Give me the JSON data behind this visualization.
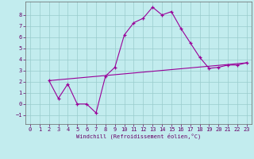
{
  "xlabel": "Windchill (Refroidissement éolien,°C)",
  "bg_color": "#c2ecee",
  "line_color": "#990099",
  "grid_color": "#99cccc",
  "spine_color": "#666666",
  "tick_color": "#660066",
  "xlim": [
    -0.5,
    23.5
  ],
  "ylim": [
    -1.8,
    9.2
  ],
  "xticks": [
    0,
    1,
    2,
    3,
    4,
    5,
    6,
    7,
    8,
    9,
    10,
    11,
    12,
    13,
    14,
    15,
    16,
    17,
    18,
    19,
    20,
    21,
    22,
    23
  ],
  "yticks": [
    -1,
    0,
    1,
    2,
    3,
    4,
    5,
    6,
    7,
    8
  ],
  "line1_x": [
    2,
    3,
    4,
    5,
    6,
    7,
    8,
    9,
    10,
    11,
    12,
    13,
    14,
    15,
    16,
    17,
    18,
    19,
    20,
    21,
    22,
    23
  ],
  "line1_y": [
    2.1,
    0.5,
    1.8,
    0.0,
    0.0,
    -0.8,
    2.5,
    3.3,
    6.2,
    7.3,
    7.7,
    8.7,
    8.0,
    8.3,
    6.8,
    5.5,
    4.2,
    3.2,
    3.3,
    3.5,
    3.5,
    3.7
  ],
  "line2_x": [
    2,
    23
  ],
  "line2_y": [
    2.1,
    3.7
  ]
}
